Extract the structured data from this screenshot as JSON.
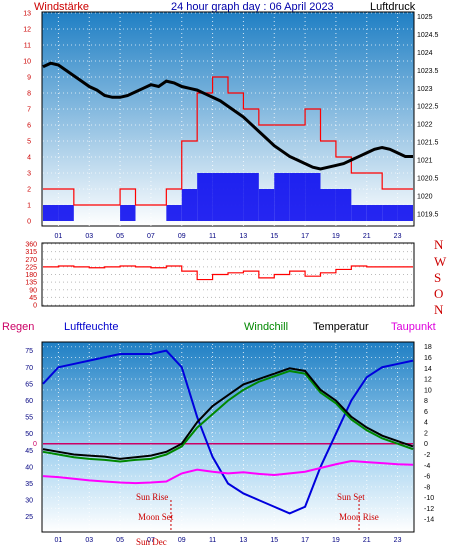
{
  "header": {
    "left": "Windstärke",
    "center": "24 hour graph day : 06 April 2023",
    "right": "Luftdruck"
  },
  "colors": {
    "wind": "#ff0000",
    "gust_fill": "#0000ee",
    "pressure": "#000000",
    "humidity": "#0000dd",
    "windchill": "#008800",
    "temperature": "#000000",
    "dewpoint": "#ff00ff",
    "rain_line": "#cc0066",
    "header_text": "#0000aa",
    "panel_top": "#1f86cc",
    "panel_bottom": "#ffffff"
  },
  "direction_labels": [
    "N",
    "W",
    "S",
    "O",
    "N"
  ],
  "legend": {
    "rain": "Regen",
    "humidity": "Luftfeuchte",
    "windchill": "Windchill",
    "temperature": "Temperatur",
    "dewpoint": "Taupunkt"
  },
  "astro": {
    "sun_rise": "Sun Rise",
    "sun_set": "Sun Set",
    "moon_set": "Moon Set",
    "moon_rise": "Moon Rise",
    "sun_dec": "Sun Dec"
  },
  "chart_data": [
    {
      "type": "line",
      "title": "24 hour graph day : 06 April 2023",
      "x_ticks": [
        "01",
        "03",
        "05",
        "07",
        "09",
        "11",
        "13",
        "15",
        "17",
        "19",
        "21",
        "23"
      ],
      "y_left_label": "Windstärke",
      "y_left_ticks": [
        0,
        1,
        2,
        3,
        4,
        5,
        6,
        7,
        8,
        9,
        10,
        11,
        12,
        13
      ],
      "y_right_label": "Luftdruck",
      "y_right_ticks": [
        1019.5,
        1020,
        1020.5,
        1021,
        1021.5,
        1022,
        1022.5,
        1023,
        1023.5,
        1024,
        1024.5,
        1025
      ],
      "grid": true,
      "series": [
        {
          "name": "Luftdruck",
          "x": [
            0,
            0.5,
            1,
            1.5,
            2,
            2.5,
            3,
            3.5,
            4,
            4.5,
            5,
            5.5,
            6,
            6.5,
            7,
            7.5,
            8,
            8.5,
            9,
            9.5,
            10,
            10.5,
            11,
            11.5,
            12,
            12.5,
            13,
            13.5,
            14,
            14.5,
            15,
            15.5,
            16,
            16.5,
            17,
            17.5,
            18,
            18.5,
            19,
            19.5,
            20,
            20.5,
            21,
            21.5,
            22,
            22.5,
            23,
            23.5,
            24
          ],
          "values": [
            1023.6,
            1023.7,
            1023.65,
            1023.5,
            1023.35,
            1023.2,
            1023.05,
            1022.95,
            1022.8,
            1022.75,
            1022.75,
            1022.8,
            1022.9,
            1023.0,
            1023.1,
            1023.05,
            1023.2,
            1023.15,
            1023.05,
            1023.0,
            1022.95,
            1022.85,
            1022.75,
            1022.65,
            1022.5,
            1022.35,
            1022.2,
            1022.0,
            1021.8,
            1021.6,
            1021.4,
            1021.25,
            1021.1,
            1021.0,
            1020.9,
            1020.8,
            1020.75,
            1020.8,
            1020.85,
            1020.9,
            1021.0,
            1021.1,
            1021.2,
            1021.3,
            1021.35,
            1021.3,
            1021.2,
            1021.1,
            1021.1
          ]
        },
        {
          "name": "Windstärke",
          "x": [
            0,
            1,
            2,
            3,
            4,
            5,
            6,
            7,
            8,
            9,
            10,
            11,
            12,
            13,
            14,
            15,
            16,
            17,
            18,
            19,
            20,
            21,
            22,
            23,
            24
          ],
          "values": [
            2,
            2,
            1,
            1,
            1,
            2,
            1,
            1,
            2,
            5,
            8,
            9,
            8,
            7,
            6,
            6,
            6,
            7,
            5,
            4,
            3,
            3,
            2,
            2,
            2
          ]
        },
        {
          "name": "Böen",
          "x": [
            0,
            1,
            2,
            3,
            4,
            5,
            6,
            7,
            8,
            9,
            10,
            11,
            12,
            13,
            14,
            15,
            16,
            17,
            18,
            19,
            20,
            21,
            22,
            23,
            24
          ],
          "values": [
            1,
            1,
            0,
            0,
            0,
            1,
            0,
            0,
            1,
            2,
            3,
            3,
            3,
            3,
            2,
            3,
            3,
            3,
            2,
            2,
            1,
            1,
            1,
            1,
            1
          ]
        }
      ]
    },
    {
      "type": "line",
      "x_ticks": [
        "01",
        "03",
        "05",
        "07",
        "09",
        "11",
        "13",
        "15",
        "17",
        "19",
        "21",
        "23"
      ],
      "y_left_ticks": [
        0,
        45,
        90,
        135,
        180,
        225,
        270,
        315,
        360
      ],
      "y_right_labels": [
        "N",
        "W",
        "S",
        "O",
        "N"
      ],
      "grid": true,
      "series": [
        {
          "name": "Windrichtung",
          "x": [
            0,
            1,
            2,
            3,
            4,
            5,
            6,
            7,
            8,
            9,
            10,
            11,
            12,
            13,
            14,
            15,
            16,
            17,
            18,
            19,
            20,
            21,
            22,
            23,
            24
          ],
          "values": [
            225,
            230,
            225,
            220,
            225,
            230,
            225,
            220,
            230,
            200,
            150,
            180,
            190,
            200,
            160,
            180,
            200,
            170,
            190,
            210,
            230,
            225,
            225,
            225,
            225
          ]
        }
      ]
    },
    {
      "type": "line",
      "x_ticks": [
        "01",
        "03",
        "05",
        "07",
        "09",
        "11",
        "13",
        "15",
        "17",
        "19",
        "21",
        "23"
      ],
      "y_left_label": "Luftfeuchte",
      "y_left_ticks": [
        25,
        30,
        35,
        40,
        45,
        50,
        55,
        60,
        65,
        70,
        75
      ],
      "y_right_label": "Temperatur",
      "y_right_ticks": [
        -14,
        -12,
        -10,
        -8,
        -6,
        -4,
        -2,
        0,
        2,
        4,
        6,
        8,
        10,
        12,
        14,
        16,
        18
      ],
      "rain_axis_label": "0",
      "grid": true,
      "series": [
        {
          "name": "Luftfeuchte",
          "x": [
            0,
            1,
            2,
            3,
            4,
            5,
            6,
            7,
            8,
            9,
            10,
            11,
            12,
            13,
            14,
            15,
            16,
            17,
            18,
            19,
            20,
            21,
            22,
            23,
            24
          ],
          "values": [
            65,
            70,
            71,
            72,
            73,
            74,
            74,
            74,
            75,
            70,
            55,
            43,
            35,
            32,
            30,
            28,
            26,
            28,
            40,
            50,
            60,
            67,
            70,
            71,
            72
          ]
        },
        {
          "name": "Temperatur",
          "x": [
            0,
            1,
            2,
            3,
            4,
            5,
            6,
            7,
            8,
            9,
            10,
            11,
            12,
            13,
            14,
            15,
            16,
            17,
            18,
            19,
            20,
            21,
            22,
            23,
            24
          ],
          "values": [
            -1,
            -1.5,
            -2,
            -2.2,
            -2.4,
            -2.8,
            -2.5,
            -2.2,
            -1.5,
            0,
            4,
            7,
            9,
            11,
            12,
            13,
            14,
            13.5,
            10,
            8,
            5,
            3,
            1.5,
            0.5,
            -0.5
          ]
        },
        {
          "name": "Windchill",
          "x": [
            0,
            1,
            2,
            3,
            4,
            5,
            6,
            7,
            8,
            9,
            10,
            11,
            12,
            13,
            14,
            15,
            16,
            17,
            18,
            19,
            20,
            21,
            22,
            23,
            24
          ],
          "values": [
            -1.5,
            -2,
            -2.5,
            -2.8,
            -3,
            -3.3,
            -3,
            -2.8,
            -2,
            -0.5,
            3,
            5.5,
            8,
            10,
            11.5,
            12.5,
            13.5,
            13,
            9.5,
            7.5,
            4.5,
            2.5,
            1,
            0,
            -1
          ]
        },
        {
          "name": "Taupunkt",
          "x": [
            0,
            1,
            2,
            3,
            4,
            5,
            6,
            7,
            8,
            9,
            10,
            11,
            12,
            13,
            14,
            15,
            16,
            17,
            18,
            19,
            20,
            21,
            22,
            23,
            24
          ],
          "values": [
            -6,
            -6.2,
            -6.5,
            -6.8,
            -7,
            -7.2,
            -7.3,
            -7.2,
            -7,
            -5.5,
            -4.8,
            -5.2,
            -5.5,
            -5.3,
            -5.6,
            -5.8,
            -5.5,
            -5.2,
            -4.5,
            -3.8,
            -3.2,
            -3.4,
            -3.6,
            -3.8,
            -3.9
          ]
        },
        {
          "name": "Regen",
          "x": [
            0,
            24
          ],
          "values": [
            0,
            0
          ]
        }
      ]
    }
  ]
}
